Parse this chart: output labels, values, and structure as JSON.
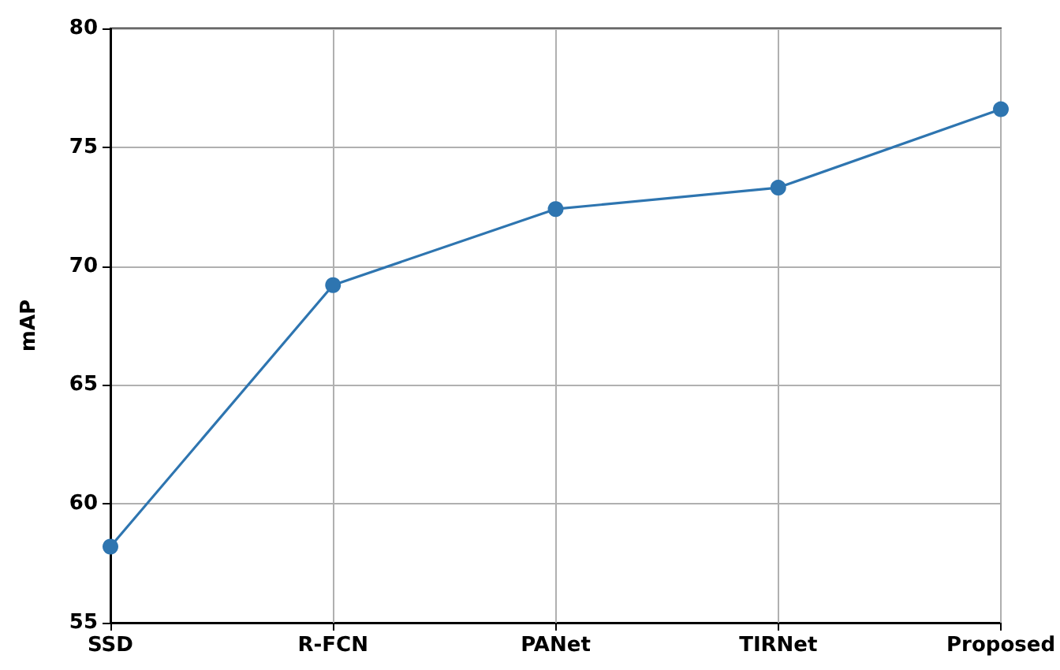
{
  "chart_data": {
    "type": "line",
    "ylabel": "mAP",
    "categories": [
      "SSD",
      "R-FCN",
      "PANet",
      "TIRNet",
      "Proposed"
    ],
    "series": [
      {
        "color": "#2e75b0",
        "values": [
          58.2,
          69.2,
          72.4,
          73.3,
          76.6
        ]
      }
    ],
    "ylim": [
      55,
      80
    ],
    "yticks": [
      55,
      60,
      65,
      70,
      75,
      80
    ],
    "grid": true,
    "marker": "circle",
    "line_style": "solid"
  }
}
